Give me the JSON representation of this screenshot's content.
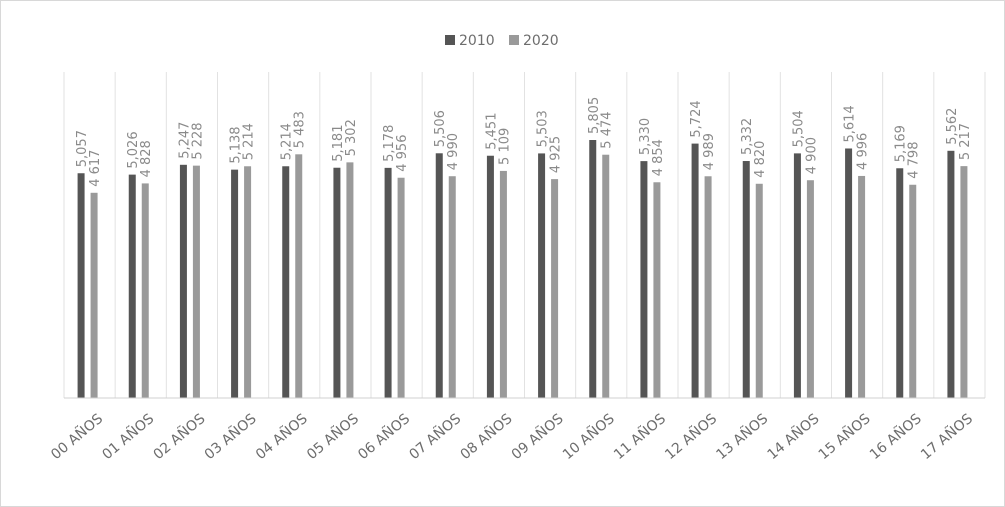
{
  "chart_data": {
    "type": "bar",
    "categories": [
      "00 AÑOS",
      "01 AÑOS",
      "02 AÑOS",
      "03 AÑOS",
      "04 AÑOS",
      "05 AÑOS",
      "06 AÑOS",
      "07 AÑOS",
      "08 AÑOS",
      "09 AÑOS",
      "10 AÑOS",
      "11 AÑOS",
      "12 AÑOS",
      "13 AÑOS",
      "14 AÑOS",
      "15 AÑOS",
      "16 AÑOS",
      "17 AÑOS"
    ],
    "series": [
      {
        "name": "2010",
        "color": "#555555",
        "values": [
          5057,
          5026,
          5247,
          5138,
          5214,
          5181,
          5178,
          5506,
          5451,
          5503,
          5805,
          5330,
          5724,
          5332,
          5504,
          5614,
          5169,
          5562
        ],
        "value_labels": [
          "5,057",
          "5,026",
          "5,247",
          "5,138",
          "5,214",
          "5,181",
          "5,178",
          "5,506",
          "5,451",
          "5,503",
          "5,805",
          "5,330",
          "5,724",
          "5,332",
          "5,504",
          "5,614",
          "5,169",
          "5,562"
        ]
      },
      {
        "name": "2020",
        "color": "#9a9a9a",
        "values": [
          4617,
          4828,
          5228,
          5214,
          5483,
          5302,
          4956,
          4990,
          5109,
          4925,
          5474,
          4854,
          4989,
          4820,
          4900,
          4996,
          4798,
          5217
        ],
        "value_labels": [
          "4 617",
          "4 828",
          "5 228",
          "5 214",
          "5 483",
          "5 302",
          "4 956",
          "4 990",
          "5 109",
          "4 925",
          "5 474",
          "4 854",
          "4 989",
          "4 820",
          "4 900",
          "4 996",
          "4 798",
          "5 217"
        ]
      }
    ],
    "legend": "top",
    "grid": true
  }
}
